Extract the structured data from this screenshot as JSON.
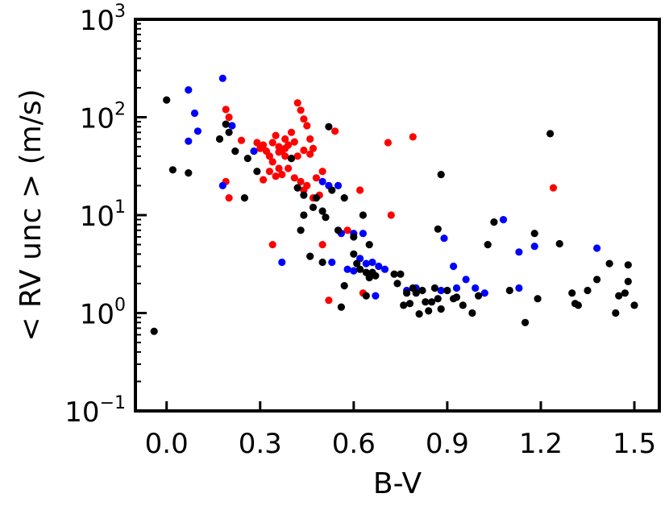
{
  "chart_data": {
    "type": "scatter",
    "xlabel": "B-V",
    "ylabel": "< RV unc >  (m/s)",
    "xlim": [
      -0.1,
      1.58
    ],
    "ylim": [
      0.1,
      1000
    ],
    "yscale": "log",
    "x_ticks": [
      {
        "value": 0.0,
        "label": "0.0"
      },
      {
        "value": 0.3,
        "label": "0.3"
      },
      {
        "value": 0.6,
        "label": "0.6"
      },
      {
        "value": 0.9,
        "label": "0.9"
      },
      {
        "value": 1.2,
        "label": "1.2"
      },
      {
        "value": 1.5,
        "label": "1.5"
      }
    ],
    "y_ticks": [
      {
        "value": 0.1,
        "base": "10",
        "exp": "−1"
      },
      {
        "value": 1,
        "base": "10",
        "exp": "0"
      },
      {
        "value": 10,
        "base": "10",
        "exp": "1"
      },
      {
        "value": 100,
        "base": "10",
        "exp": "2"
      },
      {
        "value": 1000,
        "base": "10",
        "exp": "3"
      }
    ],
    "grid": false,
    "legend": "none",
    "series": [
      {
        "color": "#ff0000",
        "points": [
          [
            0.19,
            120
          ],
          [
            0.2,
            100
          ],
          [
            0.24,
            58
          ],
          [
            0.29,
            55
          ],
          [
            0.3,
            48
          ],
          [
            0.31,
            52
          ],
          [
            0.32,
            45
          ],
          [
            0.33,
            40
          ],
          [
            0.34,
            55
          ],
          [
            0.35,
            65
          ],
          [
            0.36,
            50
          ],
          [
            0.37,
            45
          ],
          [
            0.38,
            60
          ],
          [
            0.39,
            52
          ],
          [
            0.4,
            70
          ],
          [
            0.41,
            56
          ],
          [
            0.42,
            140
          ],
          [
            0.43,
            118
          ],
          [
            0.44,
            96
          ],
          [
            0.45,
            82
          ],
          [
            0.46,
            60
          ],
          [
            0.47,
            48
          ],
          [
            0.34,
            35
          ],
          [
            0.36,
            30
          ],
          [
            0.38,
            40
          ],
          [
            0.4,
            38
          ],
          [
            0.42,
            40
          ],
          [
            0.44,
            46
          ],
          [
            0.46,
            42
          ],
          [
            0.35,
            25
          ],
          [
            0.37,
            26
          ],
          [
            0.39,
            30
          ],
          [
            0.41,
            24
          ],
          [
            0.43,
            22
          ],
          [
            0.45,
            20
          ],
          [
            0.47,
            15
          ],
          [
            0.49,
            16
          ],
          [
            0.48,
            24
          ],
          [
            0.5,
            28
          ],
          [
            0.42,
            19
          ],
          [
            0.44,
            18
          ],
          [
            0.31,
            23
          ],
          [
            0.33,
            28
          ],
          [
            0.36,
            44
          ],
          [
            0.38,
            48
          ],
          [
            0.19,
            22
          ],
          [
            0.2,
            15
          ],
          [
            0.54,
            72
          ],
          [
            0.58,
            7
          ],
          [
            0.62,
            18
          ],
          [
            0.72,
            10
          ],
          [
            0.71,
            55
          ],
          [
            0.79,
            63
          ],
          [
            1.24,
            19
          ],
          [
            0.34,
            5
          ],
          [
            0.5,
            5
          ],
          [
            0.52,
            1.35
          ],
          [
            0.63,
            1.6
          ]
        ]
      },
      {
        "color": "#0000ff",
        "points": [
          [
            0.07,
            190
          ],
          [
            0.09,
            110
          ],
          [
            0.1,
            72
          ],
          [
            0.07,
            57
          ],
          [
            0.18,
            250
          ],
          [
            0.21,
            82
          ],
          [
            0.18,
            20
          ],
          [
            0.28,
            45
          ],
          [
            0.37,
            3.3
          ],
          [
            0.5,
            22
          ],
          [
            0.52,
            20
          ],
          [
            0.55,
            20
          ],
          [
            0.56,
            6.5
          ],
          [
            0.6,
            6.5
          ],
          [
            0.63,
            6.5
          ],
          [
            0.62,
            3.6
          ],
          [
            0.64,
            3.2
          ],
          [
            0.66,
            3.3
          ],
          [
            0.68,
            3.0
          ],
          [
            0.7,
            2.8
          ],
          [
            0.58,
            2.8
          ],
          [
            0.6,
            2.7
          ],
          [
            0.53,
            3.3
          ],
          [
            0.67,
            1.5
          ],
          [
            0.77,
            1.7
          ],
          [
            0.8,
            1.8
          ],
          [
            0.88,
            1.7
          ],
          [
            0.89,
            5.8
          ],
          [
            0.92,
            3.0
          ],
          [
            0.96,
            2.2
          ],
          [
            0.93,
            1.8
          ],
          [
            0.99,
            1.8
          ],
          [
            1.02,
            1.6
          ],
          [
            1.08,
            9.0
          ],
          [
            1.13,
            4.2
          ],
          [
            1.13,
            1.8
          ],
          [
            1.18,
            4.8
          ],
          [
            1.38,
            4.6
          ]
        ]
      },
      {
        "color": "#000000",
        "points": [
          [
            -0.04,
            0.65
          ],
          [
            0.0,
            150
          ],
          [
            0.02,
            29
          ],
          [
            0.07,
            27
          ],
          [
            0.17,
            60
          ],
          [
            0.19,
            85
          ],
          [
            0.2,
            70
          ],
          [
            0.22,
            45
          ],
          [
            0.25,
            15
          ],
          [
            0.26,
            38
          ],
          [
            0.29,
            28
          ],
          [
            0.4,
            38
          ],
          [
            0.42,
            19
          ],
          [
            0.43,
            7
          ],
          [
            0.44,
            10
          ],
          [
            0.44,
            16
          ],
          [
            0.46,
            3.8
          ],
          [
            0.47,
            12
          ],
          [
            0.48,
            15
          ],
          [
            0.5,
            11
          ],
          [
            0.51,
            9.5
          ],
          [
            0.52,
            80
          ],
          [
            0.5,
            3.3
          ],
          [
            0.53,
            18
          ],
          [
            0.55,
            7
          ],
          [
            0.56,
            1.15
          ],
          [
            0.57,
            15
          ],
          [
            0.57,
            1.9
          ],
          [
            0.6,
            6
          ],
          [
            0.6,
            4
          ],
          [
            0.61,
            3.2
          ],
          [
            0.62,
            2.8
          ],
          [
            0.63,
            10
          ],
          [
            0.64,
            2.6
          ],
          [
            0.64,
            1.5
          ],
          [
            0.65,
            5
          ],
          [
            0.65,
            2.3
          ],
          [
            0.66,
            2.6
          ],
          [
            0.67,
            2.4
          ],
          [
            0.73,
            2.5
          ],
          [
            0.74,
            2.0
          ],
          [
            0.75,
            2.5
          ],
          [
            0.76,
            1.2
          ],
          [
            0.77,
            1.6
          ],
          [
            0.78,
            1.25
          ],
          [
            0.79,
            1.8
          ],
          [
            0.8,
            1.6
          ],
          [
            0.81,
            0.98
          ],
          [
            0.82,
            1.7
          ],
          [
            0.83,
            1.3
          ],
          [
            0.84,
            1.05
          ],
          [
            0.85,
            1.3
          ],
          [
            0.86,
            1.8
          ],
          [
            0.87,
            1.4
          ],
          [
            0.88,
            1.1
          ],
          [
            0.87,
            7.2
          ],
          [
            0.88,
            26
          ],
          [
            0.9,
            1.7
          ],
          [
            0.92,
            1.4
          ],
          [
            0.93,
            1.45
          ],
          [
            0.95,
            1.2
          ],
          [
            0.98,
            1.0
          ],
          [
            1.0,
            1.5
          ],
          [
            1.03,
            5.0
          ],
          [
            1.05,
            8.5
          ],
          [
            1.1,
            1.7
          ],
          [
            1.15,
            0.8
          ],
          [
            1.18,
            6.5
          ],
          [
            1.19,
            1.4
          ],
          [
            1.23,
            68
          ],
          [
            1.26,
            5.1
          ],
          [
            1.3,
            1.6
          ],
          [
            1.31,
            1.25
          ],
          [
            1.32,
            1.2
          ],
          [
            1.35,
            1.7
          ],
          [
            1.38,
            2.2
          ],
          [
            1.42,
            3.2
          ],
          [
            1.44,
            1.0
          ],
          [
            1.45,
            1.5
          ],
          [
            1.47,
            1.6
          ],
          [
            1.48,
            3.1
          ],
          [
            1.48,
            2.1
          ],
          [
            1.5,
            1.2
          ]
        ]
      }
    ]
  }
}
